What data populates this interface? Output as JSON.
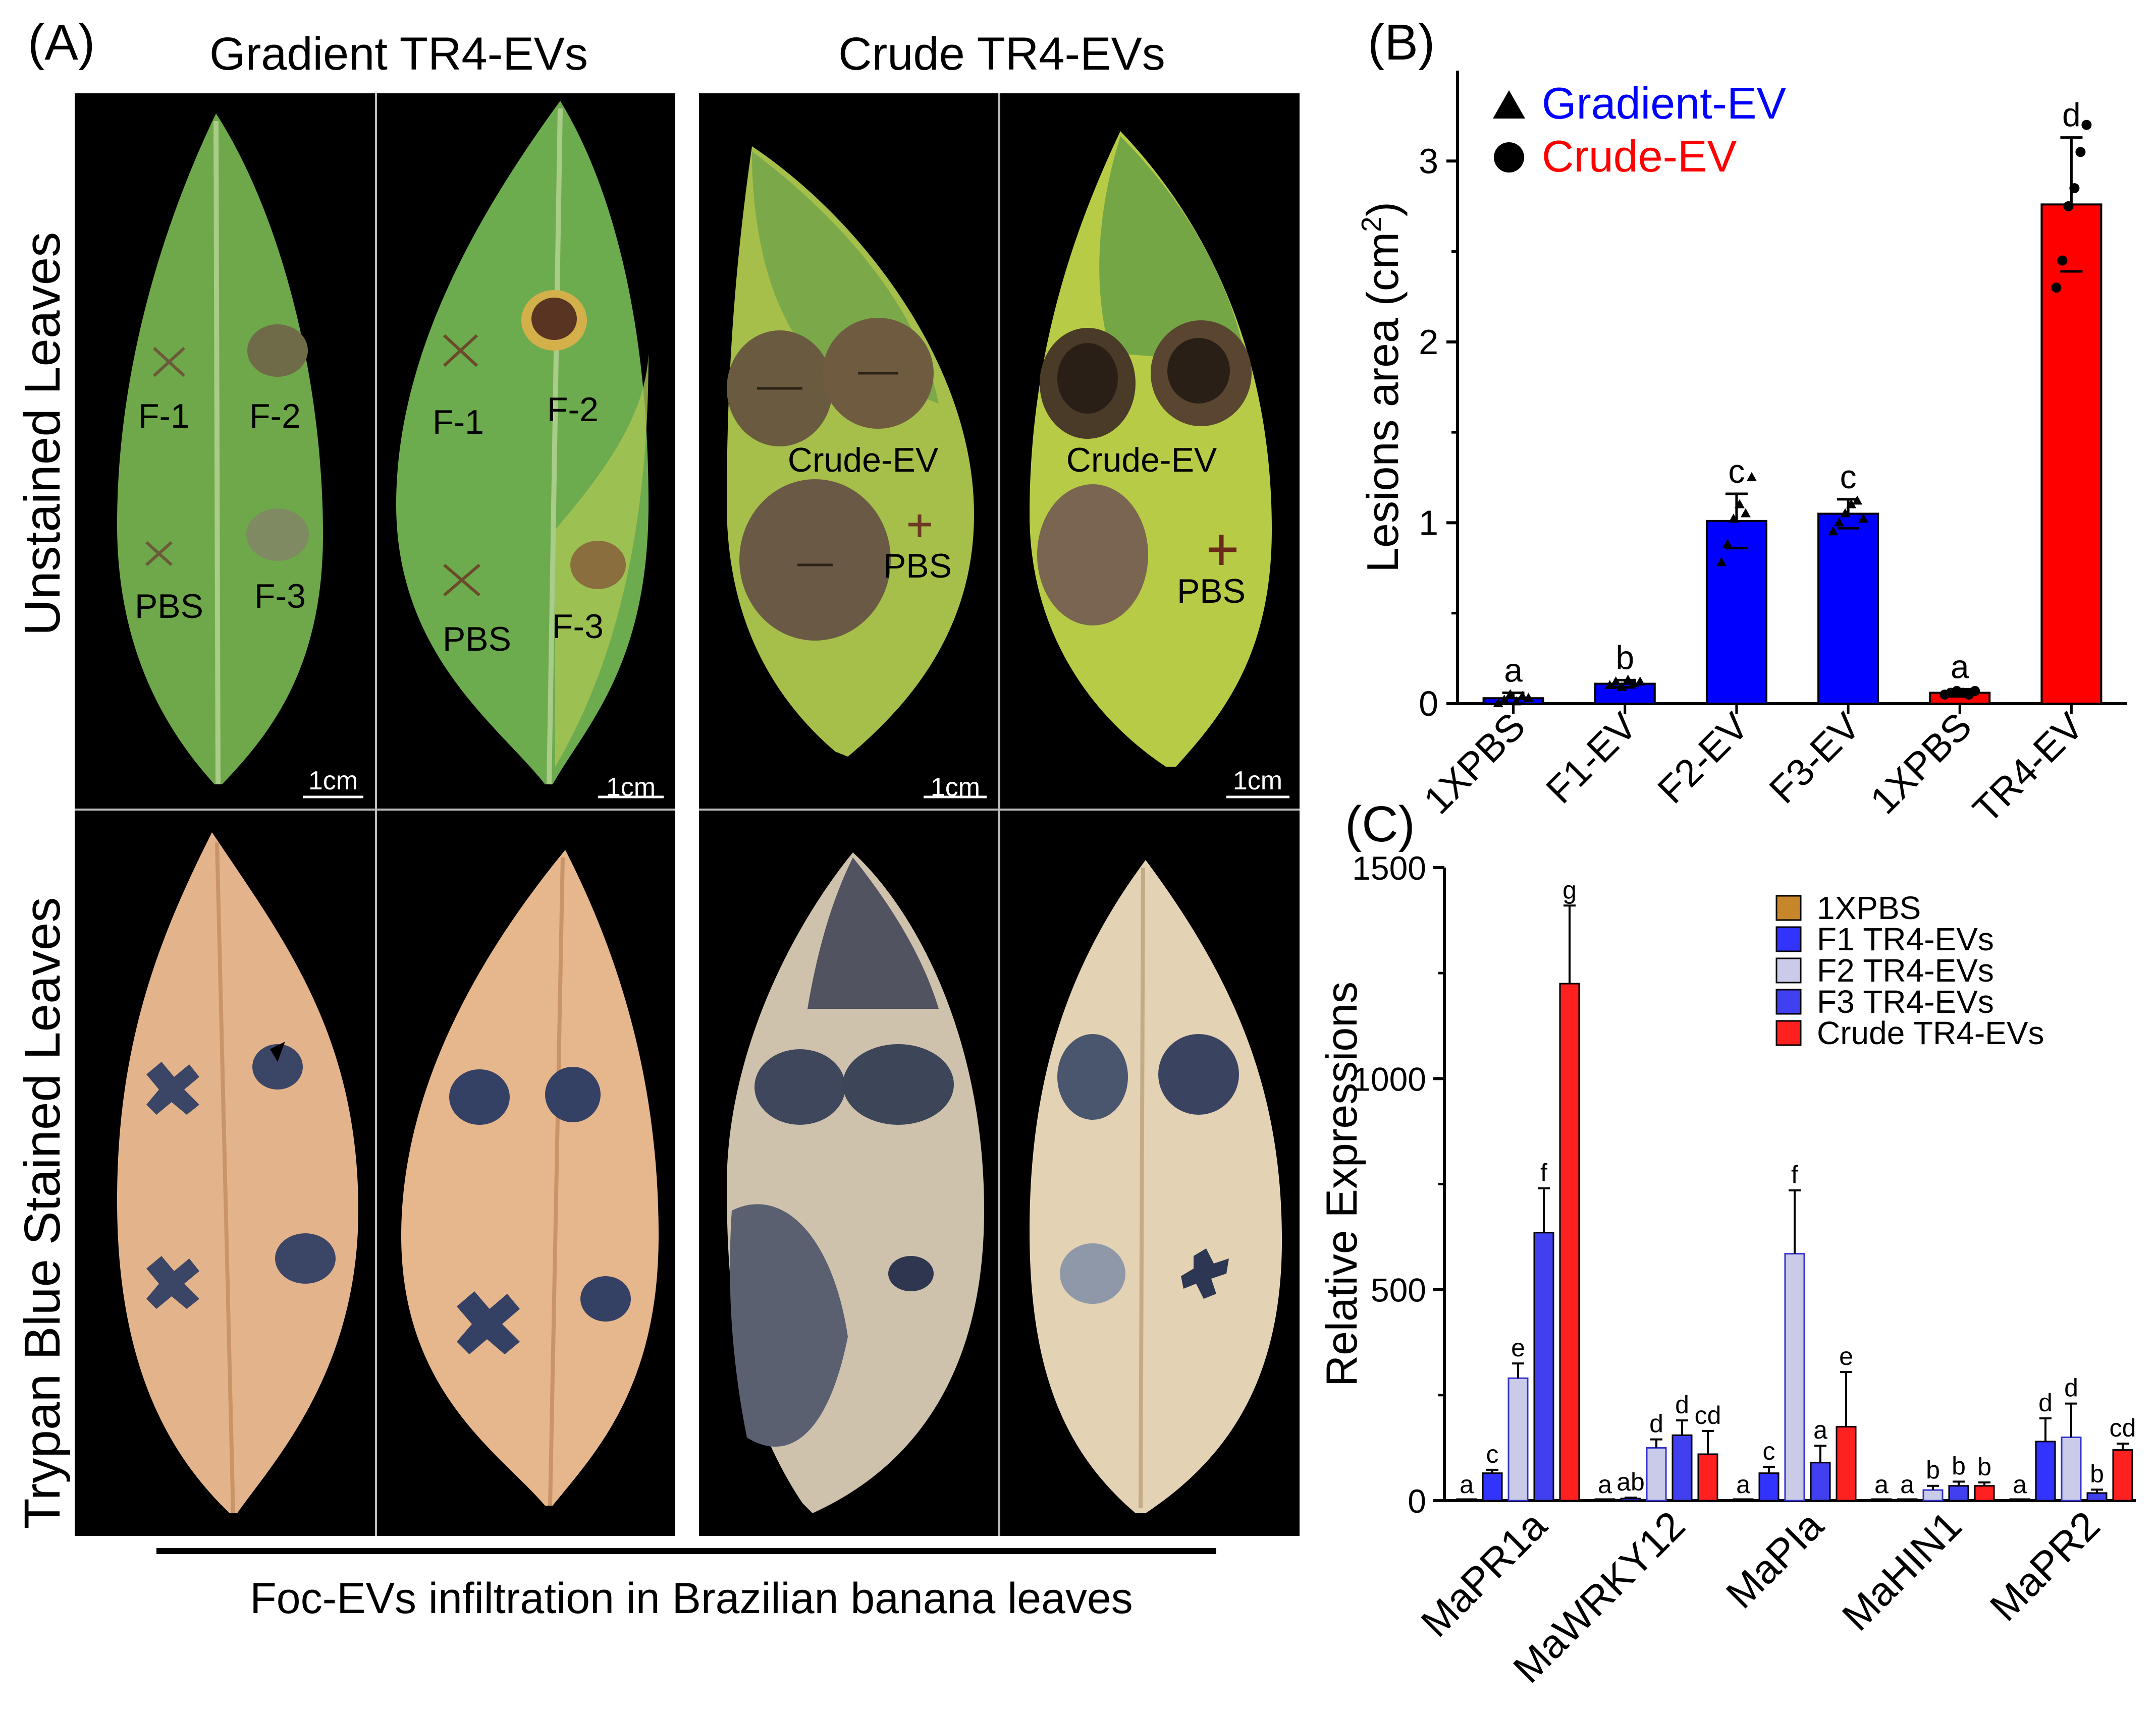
{
  "panel_a": {
    "label": "(A)",
    "col_titles": [
      "Gradient TR4-EVs",
      "Crude TR4-EVs"
    ],
    "row_titles": [
      "Unstained Leaves",
      "Trypan Blue Stained Leaves"
    ],
    "scale_bar": "1cm",
    "caption": "Foc-EVs infiltration in Brazilian banana leaves",
    "leaf_labels": {
      "gradient": [
        "F-1",
        "F-2",
        "PBS",
        "F-3"
      ],
      "crude": [
        "Crude-EV",
        "PBS"
      ]
    },
    "colors": {
      "background": "#000000",
      "green_leaf": "#6ea84a",
      "yellow_leaf": "#b6c54a",
      "stained_leaf": "#e3b48b",
      "stain": "#2f3a55"
    }
  },
  "chart_data": [
    {
      "panel": "(B)",
      "type": "bar",
      "ylabel": "Lesions area (cm",
      "ylabel_sup": "2",
      "ylabel_close": ")",
      "ylim": [
        0,
        3.5
      ],
      "yticks": [
        0,
        1,
        2,
        3
      ],
      "categories": [
        "1XPBS",
        "F1-EV",
        "F2-EV",
        "F3-EV",
        "1XPBS",
        "TR4-EV"
      ],
      "values": [
        0.03,
        0.11,
        1.01,
        1.05,
        0.06,
        2.76
      ],
      "errors": [
        0.03,
        0.02,
        0.15,
        0.08,
        0.02,
        0.37
      ],
      "letters": [
        "a",
        "b",
        "c",
        "c",
        "a",
        "d"
      ],
      "bar_colors": [
        "#0000ff",
        "#0000ff",
        "#0000ff",
        "#0000ff",
        "#ff0000",
        "#ff0000"
      ],
      "points": [
        [
          0.0,
          0.02,
          0.05,
          0.01,
          0.04,
          0.03
        ],
        [
          0.1,
          0.12,
          0.09,
          0.13,
          0.11,
          0.12
        ],
        [
          0.78,
          0.88,
          1.02,
          1.1,
          1.05,
          1.25
        ],
        [
          0.95,
          1.0,
          1.05,
          1.1,
          1.12,
          1.02
        ],
        [
          0.05,
          0.06,
          0.07,
          0.06,
          0.05,
          0.07
        ],
        [
          2.3,
          2.45,
          2.75,
          2.85,
          3.05,
          3.2
        ]
      ],
      "legend": [
        {
          "marker": "triangle",
          "label": "Gradient-EV",
          "color": "#0000ff"
        },
        {
          "marker": "circle",
          "label": "Crude-EV",
          "color": "#ff0000"
        }
      ]
    },
    {
      "panel": "(C)",
      "type": "bar",
      "ylabel": "Relative Expressions",
      "ylim": [
        0,
        1500
      ],
      "yticks": [
        0,
        500,
        1000,
        1500
      ],
      "categories": [
        "MaPR1a",
        "MaWRKY12",
        "MaPIa",
        "MaHIN1",
        "MaPR2"
      ],
      "series": [
        {
          "name": "1XPBS",
          "color": "#c8862a",
          "values": [
            1,
            1,
            1,
            1,
            1
          ],
          "errors": [
            0,
            0,
            0,
            0,
            0
          ],
          "letters": [
            "a",
            "a",
            "a",
            "a",
            "a"
          ]
        },
        {
          "name": "F1 TR4-EVs",
          "color": "#3333ff",
          "values": [
            65,
            5,
            65,
            1,
            140
          ],
          "errors": [
            8,
            2,
            15,
            0,
            55
          ],
          "letters": [
            "c",
            "ab",
            "c",
            "a",
            "d"
          ]
        },
        {
          "name": "F2 TR4-EVs",
          "color": "#c9cbe8",
          "values": [
            290,
            125,
            585,
            25,
            150
          ],
          "errors": [
            35,
            20,
            150,
            10,
            80
          ],
          "letters": [
            "e",
            "d",
            "f",
            "b",
            "d"
          ]
        },
        {
          "name": "F3 TR4-EVs",
          "color": "#4040f0",
          "values": [
            635,
            155,
            90,
            35,
            18
          ],
          "errors": [
            105,
            35,
            40,
            10,
            8
          ],
          "letters": [
            "f",
            "d",
            "a",
            "b",
            "b"
          ]
        },
        {
          "name": "Crude TR4-EVs",
          "color": "#ff2020",
          "values": [
            1225,
            110,
            175,
            35,
            120
          ],
          "errors": [
            185,
            55,
            130,
            8,
            15
          ],
          "letters": [
            "g",
            "cd",
            "e",
            "b",
            "cd"
          ]
        }
      ]
    }
  ]
}
